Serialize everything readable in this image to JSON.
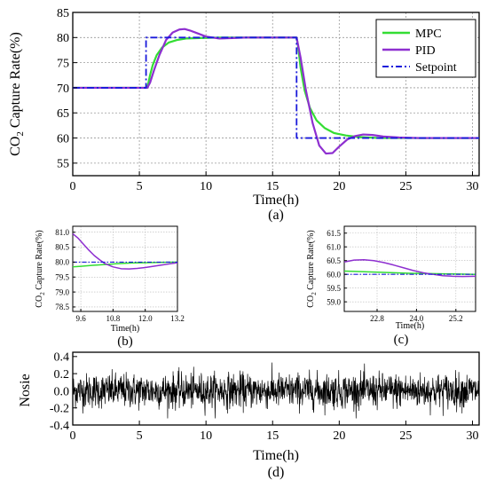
{
  "chart_data": [
    {
      "id": "a",
      "type": "line",
      "panel_label": "(a)",
      "xlabel": "Time(h)",
      "ylabel_main": "CO",
      "ylabel_sub": "2",
      "ylabel_rest": " Capture Rate(%)",
      "xlim": [
        0,
        30.5
      ],
      "ylim": [
        52.5,
        85
      ],
      "xticks": [
        0,
        5,
        10,
        15,
        20,
        25,
        30
      ],
      "yticks": [
        55,
        60,
        65,
        70,
        75,
        80,
        85
      ],
      "grid": true,
      "legend_position": "top-right",
      "series": [
        {
          "name": "MPC",
          "color": "#33dd33",
          "style": "solid",
          "x": [
            0,
            5.6,
            5.8,
            6.0,
            6.3,
            6.7,
            7.2,
            7.8,
            8.5,
            9.5,
            11,
            13,
            16.8,
            16.9,
            17.1,
            17.4,
            17.8,
            18.3,
            18.9,
            19.6,
            20.5,
            21.5,
            23,
            30.5
          ],
          "y": [
            70,
            70,
            72.5,
            74.5,
            76.5,
            78.0,
            79.0,
            79.5,
            79.8,
            79.9,
            80,
            80,
            80,
            78.5,
            74,
            69.5,
            66,
            63.5,
            62,
            61,
            60.5,
            60.2,
            60,
            60
          ]
        },
        {
          "name": "PID",
          "color": "#8e2fd0",
          "style": "solid",
          "x": [
            0,
            5.6,
            5.8,
            6.1,
            6.5,
            7.0,
            7.5,
            8.0,
            8.4,
            8.8,
            9.3,
            10,
            11,
            12,
            13,
            14,
            16.8,
            17.1,
            17.5,
            18.0,
            18.5,
            19.0,
            19.5,
            20.0,
            20.6,
            21.2,
            21.8,
            22.5,
            23.3,
            24.5,
            26,
            30.5
          ],
          "y": [
            70,
            70,
            71,
            73.5,
            76.5,
            79.5,
            81.0,
            81.6,
            81.7,
            81.4,
            80.9,
            80.2,
            79.8,
            79.9,
            80,
            80,
            80,
            76,
            69.5,
            63,
            58.5,
            56.9,
            57.0,
            58.3,
            59.7,
            60.4,
            60.7,
            60.6,
            60.3,
            60.1,
            60,
            60
          ]
        },
        {
          "name": "Setpoint",
          "color": "#1a1adb",
          "style": "dashdot",
          "x": [
            0,
            5.5,
            5.5,
            16.8,
            16.8,
            30.5
          ],
          "y": [
            70,
            70,
            80,
            80,
            60,
            60
          ]
        }
      ]
    },
    {
      "id": "b",
      "type": "line",
      "panel_label": "(b)",
      "xlabel": "Time(h)",
      "ylabel_main": "CO",
      "ylabel_sub": "2",
      "ylabel_rest": " Capture Rate(%)",
      "xlim": [
        9.3,
        13.2
      ],
      "ylim": [
        78.35,
        81.2
      ],
      "xticks": [
        9.6,
        10.8,
        12.0,
        13.2
      ],
      "yticks": [
        78.5,
        79.0,
        79.5,
        80.0,
        80.5,
        81.0
      ],
      "grid": true,
      "series": [
        {
          "name": "MPC",
          "color": "#33dd33",
          "style": "solid",
          "x": [
            9.3,
            9.6,
            10.0,
            10.5,
            11.0,
            11.5,
            12.0,
            12.5,
            13.2
          ],
          "y": [
            79.84,
            79.86,
            79.89,
            79.92,
            79.95,
            79.97,
            79.98,
            79.99,
            80.0
          ]
        },
        {
          "name": "PID",
          "color": "#8e2fd0",
          "style": "solid",
          "x": [
            9.3,
            9.5,
            9.7,
            9.9,
            10.1,
            10.3,
            10.5,
            10.8,
            11.1,
            11.4,
            11.7,
            12.0,
            12.3,
            12.6,
            12.9,
            13.2
          ],
          "y": [
            80.95,
            80.8,
            80.6,
            80.4,
            80.22,
            80.08,
            79.95,
            79.84,
            79.78,
            79.77,
            79.79,
            79.82,
            79.86,
            79.9,
            79.94,
            79.98
          ]
        },
        {
          "name": "Setpoint",
          "color": "#1a1adb",
          "style": "dashdot",
          "x": [
            9.3,
            13.2
          ],
          "y": [
            80.0,
            80.0
          ]
        }
      ]
    },
    {
      "id": "c",
      "type": "line",
      "panel_label": "(c)",
      "xlabel": "Time(h)",
      "ylabel_main": "CO",
      "ylabel_sub": "2",
      "ylabel_rest": " Capture Rate(%)",
      "xlim": [
        21.8,
        25.8
      ],
      "ylim": [
        58.65,
        61.75
      ],
      "xticks": [
        22.8,
        24.0,
        25.2
      ],
      "yticks": [
        59.0,
        59.5,
        60.0,
        60.5,
        61.0,
        61.5
      ],
      "grid": true,
      "series": [
        {
          "name": "MPC",
          "color": "#33dd33",
          "style": "solid",
          "x": [
            21.8,
            22.3,
            22.8,
            23.3,
            23.8,
            24.3,
            24.8,
            25.3,
            25.8
          ],
          "y": [
            60.12,
            60.1,
            60.08,
            60.06,
            60.04,
            60.03,
            60.02,
            60.01,
            60.0
          ]
        },
        {
          "name": "PID",
          "color": "#8e2fd0",
          "style": "solid",
          "x": [
            21.8,
            22.1,
            22.4,
            22.7,
            23.0,
            23.3,
            23.6,
            23.9,
            24.2,
            24.5,
            24.8,
            25.1,
            25.4,
            25.8
          ],
          "y": [
            60.45,
            60.52,
            60.53,
            60.5,
            60.43,
            60.34,
            60.24,
            60.14,
            60.06,
            60.0,
            59.95,
            59.93,
            59.92,
            59.93
          ]
        },
        {
          "name": "Setpoint",
          "color": "#1a1adb",
          "style": "dashdot",
          "x": [
            21.8,
            25.8
          ],
          "y": [
            60.0,
            60.0
          ]
        }
      ]
    },
    {
      "id": "d",
      "type": "line",
      "panel_label": "(d)",
      "xlabel": "Time(h)",
      "ylabel": "Nosie",
      "xlim": [
        0,
        30.5
      ],
      "ylim": [
        -0.4,
        0.45
      ],
      "xticks": [
        0,
        5,
        10,
        15,
        20,
        25,
        30
      ],
      "yticks": [
        -0.4,
        -0.2,
        0.0,
        0.2,
        0.4
      ],
      "grid": false,
      "series": [
        {
          "name": "",
          "color": "#000000",
          "style": "solid",
          "noise_points": 1500,
          "noise_std": 0.1,
          "noise_min": -0.32,
          "noise_max": 0.37
        }
      ]
    }
  ]
}
